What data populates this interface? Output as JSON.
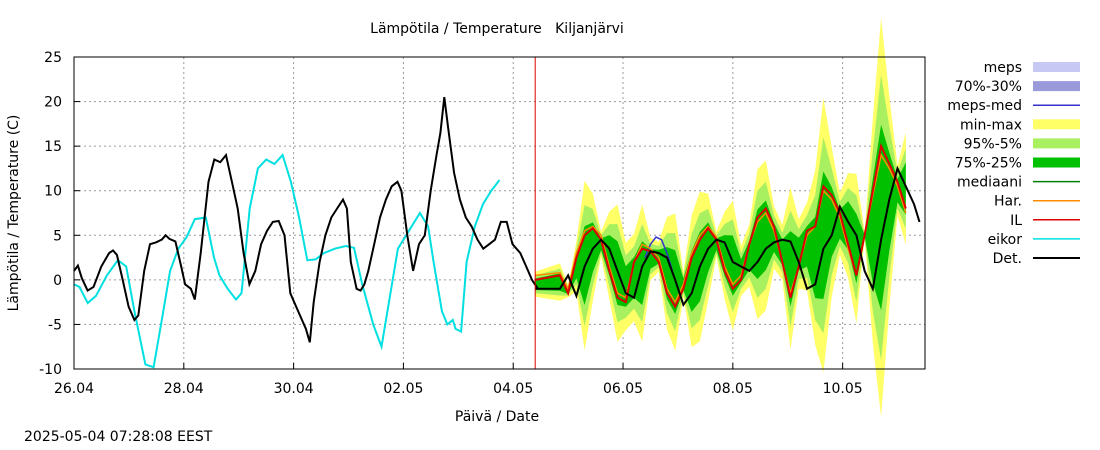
{
  "chart_data": {
    "type": "line",
    "title": "Lämpötila / Temperature   Kiljanjärvi",
    "xlabel": "Päivä / Date",
    "ylabel": "Lämpötila / Temperature (C)",
    "ylim": [
      -10,
      25
    ],
    "yticks": [
      -10,
      -5,
      0,
      5,
      10,
      15,
      20,
      25
    ],
    "x_range_days": [
      0,
      7.75
    ],
    "x_origin_label": "26.04",
    "xticks": [
      {
        "label": "26.04",
        "day": 0
      },
      {
        "label": "28.04",
        "day": 2
      },
      {
        "label": "30.04",
        "day": 4
      },
      {
        "label": "02.05",
        "day": 6
      },
      {
        "label": "04.05",
        "day": 8
      },
      {
        "label": "06.05",
        "day": 10
      },
      {
        "label": "08.05",
        "day": 12
      },
      {
        "label": "10.05",
        "day": 14
      }
    ],
    "grid": true,
    "legend_position": "right",
    "now_marker_day": 8.4,
    "legend": [
      {
        "name": "meps",
        "kind": "band",
        "color": "#c8c8f5"
      },
      {
        "name": "70%-30%",
        "kind": "band",
        "color": "#9a9ada"
      },
      {
        "name": "meps-med",
        "kind": "line",
        "color": "#3333cc"
      },
      {
        "name": "min-max",
        "kind": "band",
        "color": "#ffff66"
      },
      {
        "name": "95%-5%",
        "kind": "band",
        "color": "#a8f060"
      },
      {
        "name": "75%-25%",
        "kind": "band",
        "color": "#00c000"
      },
      {
        "name": "mediaani",
        "kind": "line",
        "color": "#008000"
      },
      {
        "name": "Har.",
        "kind": "line",
        "color": "#ff8c00"
      },
      {
        "name": "IL",
        "kind": "line",
        "color": "#dd0000"
      },
      {
        "name": "eikor",
        "kind": "line",
        "color": "#00e0e0"
      },
      {
        "name": "Det.",
        "kind": "line",
        "color": "#000000"
      }
    ],
    "series": {
      "eikor": [
        [
          0,
          -0.5
        ],
        [
          0.1,
          -0.8
        ],
        [
          0.25,
          -2.6
        ],
        [
          0.4,
          -1.8
        ],
        [
          0.6,
          0.5
        ],
        [
          0.8,
          2.2
        ],
        [
          0.95,
          1.5
        ],
        [
          1.1,
          -3.5
        ],
        [
          1.3,
          -9.5
        ],
        [
          1.45,
          -9.8
        ],
        [
          1.6,
          -4.5
        ],
        [
          1.75,
          1.0
        ],
        [
          1.9,
          3.5
        ],
        [
          2.05,
          4.8
        ],
        [
          2.2,
          6.8
        ],
        [
          2.4,
          7.0
        ],
        [
          2.55,
          2.5
        ],
        [
          2.65,
          0.5
        ],
        [
          2.8,
          -1.0
        ],
        [
          2.95,
          -2.2
        ],
        [
          3.05,
          -1.5
        ],
        [
          3.2,
          8.0
        ],
        [
          3.35,
          12.5
        ],
        [
          3.5,
          13.5
        ],
        [
          3.65,
          13.0
        ],
        [
          3.8,
          14.0
        ],
        [
          3.95,
          11.0
        ],
        [
          4.1,
          7.0
        ],
        [
          4.25,
          2.2
        ],
        [
          4.4,
          2.3
        ],
        [
          4.55,
          3.0
        ],
        [
          4.75,
          3.5
        ],
        [
          4.95,
          3.8
        ],
        [
          5.1,
          3.6
        ],
        [
          5.25,
          -0.5
        ],
        [
          5.45,
          -5.0
        ],
        [
          5.6,
          -7.5
        ],
        [
          5.75,
          -2.0
        ],
        [
          5.9,
          3.5
        ],
        [
          6.1,
          5.5
        ],
        [
          6.3,
          7.5
        ],
        [
          6.45,
          6.0
        ],
        [
          6.55,
          2.0
        ],
        [
          6.7,
          -3.5
        ],
        [
          6.8,
          -5.0
        ],
        [
          6.9,
          -4.5
        ],
        [
          6.95,
          -5.5
        ],
        [
          7.05,
          -5.8
        ],
        [
          7.15,
          2.0
        ],
        [
          7.3,
          6.0
        ],
        [
          7.45,
          8.5
        ],
        [
          7.6,
          10.0
        ],
        [
          7.75,
          11.2
        ]
      ],
      "det": [
        [
          0,
          1.0
        ],
        [
          0.1,
          1.6
        ],
        [
          0.2,
          0.2
        ],
        [
          0.35,
          -1.2
        ],
        [
          0.5,
          -0.8
        ],
        [
          0.7,
          1.5
        ],
        [
          0.9,
          3.0
        ],
        [
          1.0,
          3.3
        ],
        [
          1.1,
          2.8
        ],
        [
          1.25,
          0.0
        ],
        [
          1.4,
          -3.0
        ],
        [
          1.55,
          -4.5
        ],
        [
          1.65,
          -4.0
        ],
        [
          1.8,
          1.0
        ],
        [
          1.95,
          4.0
        ],
        [
          2.1,
          4.2
        ],
        [
          2.25,
          4.5
        ],
        [
          2.35,
          5.0
        ],
        [
          2.45,
          4.6
        ],
        [
          2.6,
          4.3
        ],
        [
          2.75,
          1.5
        ],
        [
          2.85,
          -0.5
        ],
        [
          3.0,
          -1.0
        ],
        [
          3.1,
          -2.2
        ],
        [
          3.25,
          3.0
        ],
        [
          3.45,
          11.0
        ],
        [
          3.6,
          13.5
        ],
        [
          3.75,
          13.2
        ],
        [
          3.9,
          14.0
        ],
        [
          4.05,
          11.0
        ],
        [
          4.2,
          8.0
        ],
        [
          4.35,
          3.0
        ],
        [
          4.5,
          -0.5
        ],
        [
          4.65,
          1.0
        ],
        [
          4.8,
          4.0
        ],
        [
          4.95,
          5.5
        ],
        [
          5.1,
          6.5
        ],
        [
          5.25,
          6.6
        ],
        [
          5.4,
          5.0
        ],
        [
          5.55,
          -1.5
        ],
        [
          5.75,
          -3.5
        ],
        [
          5.95,
          -5.5
        ],
        [
          6.05,
          -7.0
        ],
        [
          6.15,
          -2.5
        ],
        [
          6.3,
          2.0
        ],
        [
          6.45,
          5.0
        ],
        [
          6.6,
          7.0
        ],
        [
          6.75,
          8.0
        ],
        [
          6.9,
          9.0
        ],
        [
          7.0,
          8.0
        ],
        [
          7.1,
          2.0
        ],
        [
          7.25,
          -1.0
        ],
        [
          7.35,
          -1.2
        ],
        [
          7.45,
          -0.5
        ],
        [
          7.55,
          1.0
        ],
        [
          7.7,
          4.0
        ],
        [
          7.85,
          7.0
        ],
        [
          8.0,
          9.0
        ],
        [
          8.15,
          10.5
        ],
        [
          8.3,
          11.0
        ],
        [
          8.4,
          10.0
        ],
        [
          8.55,
          5.0
        ],
        [
          8.7,
          1.0
        ],
        [
          8.85,
          4.0
        ],
        [
          9.0,
          5.0
        ],
        [
          9.15,
          10.0
        ],
        [
          9.3,
          14.0
        ],
        [
          9.4,
          16.5
        ],
        [
          9.5,
          20.5
        ],
        [
          9.6,
          17.0
        ],
        [
          9.75,
          12.0
        ],
        [
          9.9,
          9.0
        ],
        [
          10.05,
          7.0
        ],
        [
          10.2,
          6.0
        ],
        [
          10.35,
          4.5
        ],
        [
          10.5,
          3.5
        ],
        [
          10.65,
          4.0
        ],
        [
          10.8,
          4.5
        ],
        [
          10.95,
          6.5
        ],
        [
          11.1,
          6.5
        ],
        [
          11.25,
          4.0
        ],
        [
          11.45,
          3.0
        ],
        [
          11.6,
          1.5
        ],
        [
          11.75,
          0.0
        ],
        [
          11.9,
          -1.0
        ]
      ],
      "det_scale_note": "",
      "det_future": [
        [
          0,
          -1.0
        ],
        [
          0.3,
          -1.0
        ],
        [
          0.45,
          -1.0
        ],
        [
          0.6,
          0.5
        ],
        [
          0.75,
          -1.8
        ],
        [
          0.9,
          1.5
        ],
        [
          1.05,
          3.5
        ],
        [
          1.2,
          4.5
        ],
        [
          1.35,
          3.5
        ],
        [
          1.5,
          1.0
        ],
        [
          1.65,
          -1.5
        ],
        [
          1.8,
          -2.0
        ],
        [
          1.95,
          1.5
        ],
        [
          2.1,
          3.2
        ],
        [
          2.25,
          3.0
        ],
        [
          2.4,
          2.5
        ],
        [
          2.55,
          0.0
        ],
        [
          2.7,
          -2.8
        ],
        [
          2.85,
          -1.5
        ],
        [
          3.0,
          1.5
        ],
        [
          3.15,
          3.5
        ],
        [
          3.3,
          4.5
        ],
        [
          3.45,
          4.2
        ],
        [
          3.6,
          2.0
        ],
        [
          3.75,
          1.5
        ],
        [
          3.9,
          1.0
        ],
        [
          4.05,
          2.0
        ],
        [
          4.2,
          3.5
        ],
        [
          4.35,
          4.2
        ],
        [
          4.5,
          4.5
        ],
        [
          4.65,
          4.3
        ],
        [
          4.8,
          2.0
        ],
        [
          4.95,
          -1.0
        ],
        [
          5.1,
          -0.5
        ],
        [
          5.25,
          3.5
        ],
        [
          5.4,
          5.0
        ],
        [
          5.55,
          8.2
        ],
        [
          5.7,
          6.5
        ],
        [
          5.85,
          5.0
        ],
        [
          6.0,
          1.0
        ],
        [
          6.15,
          -1.0
        ],
        [
          6.3,
          4.5
        ],
        [
          6.45,
          9.0
        ],
        [
          6.6,
          12.5
        ],
        [
          6.75,
          10.5
        ],
        [
          6.9,
          8.5
        ],
        [
          7.0,
          6.5
        ]
      ],
      "il_future": [
        [
          0,
          0.0
        ],
        [
          0.45,
          0.5
        ],
        [
          0.6,
          -1.5
        ],
        [
          0.75,
          2.5
        ],
        [
          0.9,
          5.0
        ],
        [
          1.05,
          5.8
        ],
        [
          1.2,
          4.5
        ],
        [
          1.35,
          1.0
        ],
        [
          1.5,
          -2.0
        ],
        [
          1.65,
          -2.5
        ],
        [
          1.8,
          2.0
        ],
        [
          1.95,
          3.5
        ],
        [
          2.1,
          3.2
        ],
        [
          2.25,
          2.0
        ],
        [
          2.4,
          -1.5
        ],
        [
          2.55,
          -3.0
        ],
        [
          2.7,
          -1.0
        ],
        [
          2.85,
          2.5
        ],
        [
          3.0,
          4.5
        ],
        [
          3.15,
          5.8
        ],
        [
          3.3,
          4.5
        ],
        [
          3.45,
          1.0
        ],
        [
          3.6,
          -1.0
        ],
        [
          3.75,
          0.0
        ],
        [
          3.9,
          4.0
        ],
        [
          4.05,
          7.0
        ],
        [
          4.2,
          8.0
        ],
        [
          4.35,
          6.0
        ],
        [
          4.5,
          2.0
        ],
        [
          4.65,
          -2.0
        ],
        [
          4.8,
          1.5
        ],
        [
          4.95,
          5.5
        ],
        [
          5.1,
          6.0
        ],
        [
          5.25,
          10.5
        ],
        [
          5.4,
          9.5
        ],
        [
          5.55,
          7.5
        ],
        [
          5.7,
          4.0
        ],
        [
          5.85,
          0.5
        ],
        [
          6.0,
          5.0
        ],
        [
          6.15,
          10.0
        ],
        [
          6.3,
          15.0
        ],
        [
          6.45,
          13.0
        ],
        [
          6.6,
          11.0
        ],
        [
          6.75,
          8.0
        ]
      ],
      "har_future": [
        [
          0,
          0.5
        ],
        [
          0.45,
          0.8
        ],
        [
          0.6,
          -1.0
        ],
        [
          0.75,
          3.0
        ],
        [
          0.9,
          5.5
        ],
        [
          1.05,
          6.0
        ],
        [
          1.2,
          5.0
        ],
        [
          1.35,
          1.5
        ],
        [
          1.5,
          -1.5
        ],
        [
          1.65,
          -2.0
        ],
        [
          1.8,
          2.0
        ],
        [
          1.95,
          4.0
        ],
        [
          2.1,
          3.5
        ],
        [
          2.25,
          2.5
        ],
        [
          2.4,
          -1.0
        ],
        [
          2.55,
          -2.5
        ],
        [
          2.7,
          -0.5
        ],
        [
          2.85,
          3.0
        ],
        [
          3.0,
          5.0
        ],
        [
          3.15,
          6.0
        ],
        [
          3.3,
          4.8
        ],
        [
          3.45,
          1.5
        ],
        [
          3.6,
          -0.5
        ],
        [
          3.75,
          0.5
        ],
        [
          3.9,
          4.0
        ],
        [
          4.05,
          6.5
        ],
        [
          4.2,
          7.5
        ],
        [
          4.35,
          5.5
        ],
        [
          4.5,
          2.0
        ],
        [
          4.65,
          -1.5
        ],
        [
          4.8,
          1.5
        ],
        [
          4.95,
          5.0
        ],
        [
          5.1,
          6.0
        ],
        [
          5.25,
          10.0
        ],
        [
          5.4,
          9.0
        ],
        [
          5.55,
          7.0
        ],
        [
          5.7,
          3.5
        ],
        [
          5.85,
          0.5
        ],
        [
          6.0,
          5.0
        ],
        [
          6.15,
          9.5
        ],
        [
          6.3,
          14.0
        ],
        [
          6.45,
          12.5
        ],
        [
          6.6,
          10.5
        ],
        [
          6.75,
          7.5
        ]
      ],
      "meps_med_future": [
        [
          2.0,
          2.5
        ],
        [
          2.1,
          4.0
        ],
        [
          2.2,
          4.8
        ],
        [
          2.3,
          4.5
        ],
        [
          2.4,
          3.0
        ],
        [
          2.5,
          1.0
        ]
      ]
    }
  },
  "timestamp": "2025-05-04 07:28:08 EEST"
}
